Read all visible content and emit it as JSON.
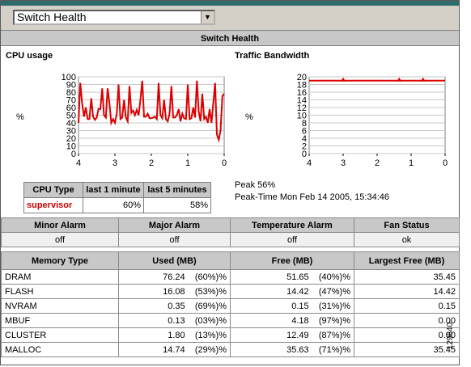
{
  "selector": {
    "value": "Switch Health"
  },
  "section_title": "Switch Health",
  "cpu": {
    "title": "CPU usage",
    "unit": "%",
    "chart_data": {
      "type": "line",
      "x": [
        4.0,
        3.95,
        3.9,
        3.85,
        3.8,
        3.75,
        3.7,
        3.65,
        3.6,
        3.55,
        3.5,
        3.45,
        3.4,
        3.35,
        3.3,
        3.25,
        3.2,
        3.15,
        3.1,
        3.05,
        3.0,
        2.95,
        2.9,
        2.85,
        2.8,
        2.75,
        2.7,
        2.65,
        2.6,
        2.55,
        2.5,
        2.45,
        2.4,
        2.35,
        2.3,
        2.25,
        2.2,
        2.15,
        2.1,
        2.05,
        2.0,
        1.95,
        1.9,
        1.85,
        1.8,
        1.75,
        1.7,
        1.65,
        1.6,
        1.55,
        1.5,
        1.45,
        1.4,
        1.35,
        1.3,
        1.25,
        1.2,
        1.15,
        1.1,
        1.05,
        1.0,
        0.95,
        0.9,
        0.85,
        0.8,
        0.75,
        0.7,
        0.65,
        0.6,
        0.55,
        0.5,
        0.45,
        0.4,
        0.35,
        0.3,
        0.25,
        0.2,
        0.15,
        0.1,
        0.05,
        0.0
      ],
      "values": [
        40,
        92,
        65,
        48,
        60,
        45,
        45,
        72,
        48,
        44,
        47,
        58,
        58,
        85,
        50,
        47,
        85,
        65,
        40,
        45,
        40,
        52,
        90,
        45,
        47,
        70,
        47,
        42,
        88,
        53,
        56,
        50,
        57,
        50,
        70,
        95,
        48,
        48,
        52,
        46,
        46,
        47,
        48,
        45,
        92,
        50,
        46,
        70,
        45,
        42,
        52,
        88,
        47,
        47,
        50,
        58,
        42,
        52,
        46,
        45,
        90,
        45,
        46,
        60,
        47,
        95,
        55,
        42,
        78,
        45,
        48,
        40,
        58,
        40,
        65,
        92,
        25,
        18,
        30,
        75,
        78
      ],
      "xticks": [
        "4",
        "3",
        "2",
        "1",
        "0"
      ],
      "yticks": [
        "0",
        "10",
        "20",
        "30",
        "40",
        "50",
        "60",
        "70",
        "80",
        "90",
        "100"
      ],
      "ylim": [
        0,
        100
      ],
      "xlim": [
        4,
        0
      ],
      "grid": true
    },
    "table": {
      "headers": [
        "CPU Type",
        "last 1 minute",
        "last 5 minutes"
      ],
      "row": [
        "supervisor",
        "60%",
        "58%"
      ]
    }
  },
  "traffic": {
    "title": "Traffic Bandwidth",
    "unit": "%",
    "chart_data": {
      "type": "line",
      "x": [
        4.0,
        3.0,
        1.35,
        0.65,
        0.0
      ],
      "values": [
        19,
        19,
        19,
        19,
        19
      ],
      "markers_at": [
        3.0,
        1.35,
        0.65
      ],
      "xticks": [
        "4",
        "3",
        "2",
        "1",
        "0"
      ],
      "yticks": [
        "0",
        "2",
        "4",
        "6",
        "8",
        "10",
        "12",
        "14",
        "16",
        "18",
        "20"
      ],
      "ylim": [
        0,
        20
      ],
      "xlim": [
        4,
        0
      ],
      "grid": true
    },
    "peak": "Peak 56%",
    "peak_time": "Peak-Time Mon Feb 14 2005, 15:34:46"
  },
  "status": {
    "headers": [
      "Minor Alarm",
      "Major Alarm",
      "Temperature Alarm",
      "Fan Status"
    ],
    "values": [
      "off",
      "off",
      "off",
      "ok"
    ]
  },
  "memory": {
    "headers": [
      "Memory Type",
      "Used (MB)",
      "Free (MB)",
      "Largest Free (MB)"
    ],
    "rows": [
      {
        "type": "DRAM",
        "used": "76.24",
        "used_pct": "(60%)%",
        "free": "51.65",
        "free_pct": "(40%)%",
        "largest": "35.45"
      },
      {
        "type": "FLASH",
        "used": "16.08",
        "used_pct": "(53%)%",
        "free": "14.42",
        "free_pct": "(47%)%",
        "largest": "14.42"
      },
      {
        "type": "NVRAM",
        "used": "0.35",
        "used_pct": "(69%)%",
        "free": "0.15",
        "free_pct": "(31%)%",
        "largest": "0.15"
      },
      {
        "type": "MBUF",
        "used": "0.13",
        "used_pct": "(03%)%",
        "free": "4.18",
        "free_pct": "(97%)%",
        "largest": "0.00"
      },
      {
        "type": "CLUSTER",
        "used": "1.80",
        "used_pct": "(13%)%",
        "free": "12.49",
        "free_pct": "(87%)%",
        "largest": "0.00"
      },
      {
        "type": "MALLOC",
        "used": "14.74",
        "used_pct": "(29%)%",
        "free": "35.63",
        "free_pct": "(71%)%",
        "largest": "35.45"
      }
    ]
  },
  "figure_id": "129640"
}
